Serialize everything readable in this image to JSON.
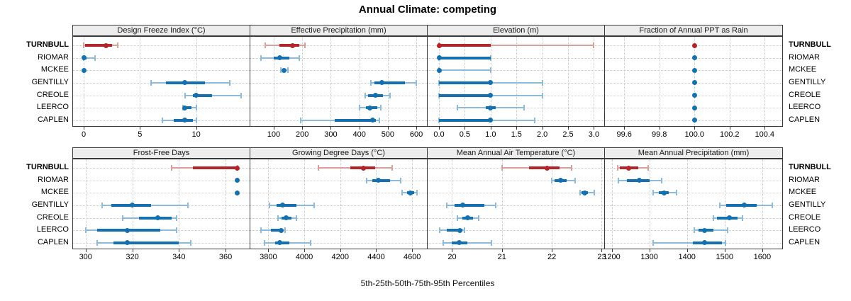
{
  "title": "Annual Climate: competing",
  "caption": "5th-25th-50th-75th-95th Percentiles",
  "sites": [
    "TURNBULL",
    "RIOMAR",
    "MCKEE",
    "GENTILLY",
    "CREOLE",
    "LEERCO",
    "CAPLEN"
  ],
  "highlight_site": "TURNBULL",
  "colors": {
    "highlight": "#B2262A",
    "highlight_light": "#DB9E98",
    "base": "#1470AF",
    "base_light": "#8CBBDB",
    "header_bg": "#EDEDED",
    "grid": "#C9C9C9"
  },
  "chart_data": [
    {
      "type": "dotplot-percentiles",
      "slug": "design-freeze-index",
      "title": "Design Freeze Index (°C)",
      "domain": [
        -0.95,
        14.75
      ],
      "ticks": [
        0,
        5,
        10
      ],
      "tick_labels": [
        "0",
        "5",
        "10"
      ],
      "series": [
        {
          "site": "TURNBULL",
          "p": [
            0,
            0.15,
            2,
            2.5,
            3
          ]
        },
        {
          "site": "RIOMAR",
          "p": [
            0,
            0,
            0,
            0.25,
            1
          ]
        },
        {
          "site": "MCKEE",
          "p": [
            0,
            0,
            0,
            0,
            0
          ]
        },
        {
          "site": "GENTILLY",
          "p": [
            6,
            7.3,
            9,
            10.8,
            13
          ]
        },
        {
          "site": "CREOLE",
          "p": [
            9,
            9.7,
            10,
            11.4,
            14
          ]
        },
        {
          "site": "LEERCO",
          "p": [
            8.8,
            9,
            9,
            9.6,
            10
          ]
        },
        {
          "site": "CAPLEN",
          "p": [
            7,
            8,
            9,
            9.7,
            10
          ]
        }
      ]
    },
    {
      "type": "dotplot-percentiles",
      "slug": "effective-precipitation",
      "title": "Effective Precipitation (mm)",
      "domain": [
        18,
        637
      ],
      "ticks": [
        100,
        200,
        300,
        400,
        500,
        600
      ],
      "tick_labels": [
        "100",
        "200",
        "300",
        "400",
        "500",
        "600"
      ],
      "series": [
        {
          "site": "TURNBULL",
          "p": [
            70,
            120,
            165,
            190,
            210
          ]
        },
        {
          "site": "RIOMAR",
          "p": [
            55,
            100,
            122,
            155,
            190
          ]
        },
        {
          "site": "MCKEE",
          "p": [
            125,
            130,
            135,
            142,
            150
          ]
        },
        {
          "site": "GENTILLY",
          "p": [
            440,
            452,
            478,
            560,
            600
          ]
        },
        {
          "site": "CREOLE",
          "p": [
            420,
            430,
            457,
            483,
            507
          ]
        },
        {
          "site": "LEERCO",
          "p": [
            400,
            424,
            438,
            464,
            476
          ]
        },
        {
          "site": "CAPLEN",
          "p": [
            195,
            315,
            447,
            458,
            470
          ]
        }
      ]
    },
    {
      "type": "dotplot-percentiles",
      "slug": "elevation",
      "title": "Elevation (m)",
      "domain": [
        -0.22,
        3.2
      ],
      "ticks": [
        0,
        0.5,
        1,
        1.5,
        2,
        2.5,
        3
      ],
      "tick_labels": [
        "0.0",
        "0.5",
        "1.0",
        "1.5",
        "2.0",
        "2.5",
        "3.0"
      ],
      "series": [
        {
          "site": "TURNBULL",
          "p": [
            0,
            0,
            0,
            1,
            3
          ]
        },
        {
          "site": "RIOMAR",
          "p": [
            0,
            0,
            0,
            1,
            1
          ]
        },
        {
          "site": "MCKEE",
          "p": [
            0,
            0,
            0,
            0,
            1
          ]
        },
        {
          "site": "GENTILLY",
          "p": [
            0,
            0,
            1,
            1,
            2
          ]
        },
        {
          "site": "CREOLE",
          "p": [
            0,
            0,
            1,
            1,
            2
          ]
        },
        {
          "site": "LEERCO",
          "p": [
            0.35,
            0.9,
            1,
            1.1,
            1.65
          ]
        },
        {
          "site": "CAPLEN",
          "p": [
            0,
            0,
            1,
            1,
            1.85
          ]
        }
      ]
    },
    {
      "type": "dotplot-percentiles",
      "slug": "fraction-annual-ppt-as-rain",
      "title": "Fraction of Annual PPT as Rain",
      "domain": [
        99.49,
        100.5
      ],
      "ticks": [
        99.6,
        99.8,
        100,
        100.2,
        100.4
      ],
      "tick_labels": [
        "99.6",
        "99.8",
        "100.0",
        "100.2",
        "100.4"
      ],
      "series": [
        {
          "site": "TURNBULL",
          "p": [
            100,
            100,
            100,
            100,
            100
          ]
        },
        {
          "site": "RIOMAR",
          "p": [
            100,
            100,
            100,
            100,
            100
          ]
        },
        {
          "site": "MCKEE",
          "p": [
            100,
            100,
            100,
            100,
            100
          ]
        },
        {
          "site": "GENTILLY",
          "p": [
            100,
            100,
            100,
            100,
            100
          ]
        },
        {
          "site": "CREOLE",
          "p": [
            100,
            100,
            100,
            100,
            100
          ]
        },
        {
          "site": "LEERCO",
          "p": [
            100,
            100,
            100,
            100,
            100
          ]
        },
        {
          "site": "CAPLEN",
          "p": [
            100,
            100,
            100,
            100,
            100
          ]
        }
      ]
    },
    {
      "type": "dotplot-percentiles",
      "slug": "frost-free-days",
      "title": "Frost-Free Days",
      "domain": [
        294.6,
        370.3
      ],
      "ticks": [
        300,
        320,
        340,
        360
      ],
      "tick_labels": [
        "300",
        "320",
        "340",
        "360"
      ],
      "series": [
        {
          "site": "TURNBULL",
          "p": [
            337,
            346,
            365,
            365,
            365
          ]
        },
        {
          "site": "RIOMAR",
          "p": [
            365,
            365,
            365,
            365,
            365
          ]
        },
        {
          "site": "MCKEE",
          "p": [
            365,
            365,
            365,
            365,
            365
          ]
        },
        {
          "site": "GENTILLY",
          "p": [
            307,
            311,
            320,
            328,
            344
          ]
        },
        {
          "site": "CREOLE",
          "p": [
            316,
            323,
            331,
            337,
            339
          ]
        },
        {
          "site": "LEERCO",
          "p": [
            300,
            305,
            318,
            332,
            339
          ]
        },
        {
          "site": "CAPLEN",
          "p": [
            305,
            312,
            318,
            340,
            345
          ]
        }
      ]
    },
    {
      "type": "dotplot-percentiles",
      "slug": "growing-degree-days",
      "title": "Growing Degree Days (°C)",
      "domain": [
        3700,
        4682
      ],
      "ticks": [
        3800,
        4000,
        4200,
        4400,
        4600
      ],
      "tick_labels": [
        "3800",
        "4000",
        "4200",
        "4400",
        "4600"
      ],
      "series": [
        {
          "site": "TURNBULL",
          "p": [
            4080,
            4255,
            4330,
            4395,
            4490
          ]
        },
        {
          "site": "RIOMAR",
          "p": [
            4345,
            4380,
            4410,
            4475,
            4535
          ]
        },
        {
          "site": "MCKEE",
          "p": [
            4545,
            4570,
            4590,
            4610,
            4625
          ]
        },
        {
          "site": "GENTILLY",
          "p": [
            3805,
            3845,
            3880,
            3955,
            4055
          ]
        },
        {
          "site": "CREOLE",
          "p": [
            3855,
            3875,
            3900,
            3930,
            3955
          ]
        },
        {
          "site": "LEERCO",
          "p": [
            3758,
            3815,
            3870,
            3882,
            3892
          ]
        },
        {
          "site": "CAPLEN",
          "p": [
            3780,
            3840,
            3865,
            3915,
            4035
          ]
        }
      ]
    },
    {
      "type": "dotplot-percentiles",
      "slug": "mean-annual-air-temperature",
      "title": "Mean Annual Air Temperature (°C)",
      "domain": [
        19.51,
        23.05
      ],
      "ticks": [
        20,
        21,
        22,
        23
      ],
      "tick_labels": [
        "20",
        "21",
        "22",
        "23"
      ],
      "series": [
        {
          "site": "TURNBULL",
          "p": [
            21,
            21.55,
            21.9,
            22.15,
            22.4
          ]
        },
        {
          "site": "RIOMAR",
          "p": [
            22,
            22.05,
            22.17,
            22.3,
            22.47
          ]
        },
        {
          "site": "MCKEE",
          "p": [
            22.57,
            22.6,
            22.66,
            22.72,
            22.85
          ]
        },
        {
          "site": "GENTILLY",
          "p": [
            19.9,
            20.05,
            20.22,
            20.65,
            20.88
          ]
        },
        {
          "site": "CREOLE",
          "p": [
            20.1,
            20.2,
            20.31,
            20.42,
            20.53
          ]
        },
        {
          "site": "LEERCO",
          "p": [
            19.75,
            19.9,
            20.15,
            20.2,
            20.25
          ]
        },
        {
          "site": "CAPLEN",
          "p": [
            19.82,
            20,
            20.14,
            20.3,
            20.79
          ]
        }
      ]
    },
    {
      "type": "dotplot-percentiles",
      "slug": "mean-annual-precipitation",
      "title": "Mean Annual Precipitation (mm)",
      "domain": [
        1182,
        1653
      ],
      "ticks": [
        1200,
        1300,
        1400,
        1500,
        1600
      ],
      "tick_labels": [
        "1200",
        "1300",
        "1400",
        "1500",
        "1600"
      ],
      "series": [
        {
          "site": "TURNBULL",
          "p": [
            1215,
            1222,
            1245,
            1270,
            1297
          ]
        },
        {
          "site": "RIOMAR",
          "p": [
            1217,
            1240,
            1274,
            1300,
            1332
          ]
        },
        {
          "site": "MCKEE",
          "p": [
            1310,
            1325,
            1339,
            1352,
            1372
          ]
        },
        {
          "site": "GENTILLY",
          "p": [
            1487,
            1505,
            1553,
            1585,
            1627
          ]
        },
        {
          "site": "CREOLE",
          "p": [
            1470,
            1480,
            1513,
            1535,
            1548
          ]
        },
        {
          "site": "LEERCO",
          "p": [
            1419,
            1430,
            1447,
            1470,
            1507
          ]
        },
        {
          "site": "CAPLEN",
          "p": [
            1310,
            1415,
            1446,
            1492,
            1502
          ]
        }
      ]
    }
  ]
}
